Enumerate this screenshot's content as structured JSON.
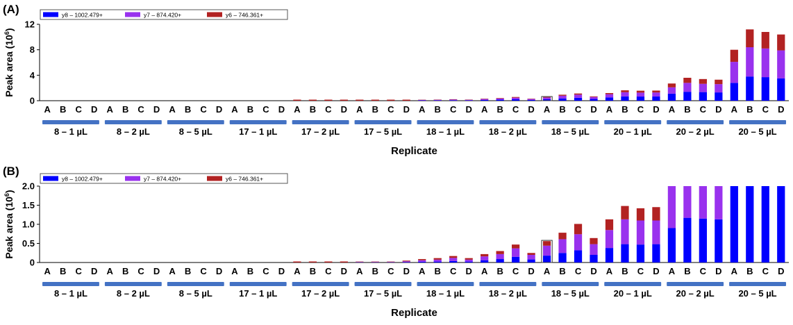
{
  "colors": {
    "y8": "#0000ff",
    "y7": "#9932ee",
    "y6": "#b22222",
    "group_bar": "#4472c4"
  },
  "legend": [
    {
      "name": "y8 – 1002.479+",
      "color": "#0000ff"
    },
    {
      "name": "y7 – 874.420+",
      "color": "#9932ee"
    },
    {
      "name": "y6 – 746.361+",
      "color": "#b22222"
    }
  ],
  "groups": [
    "8 – 1 µL",
    "8 – 2 µL",
    "8 – 5 µL",
    "17 – 1 µL",
    "17 – 2 µL",
    "17 – 5 µL",
    "18 – 1 µL",
    "18 – 2 µL",
    "18 – 5 µL",
    "20 – 1 µL",
    "20 – 2 µL",
    "20 – 5 µL"
  ],
  "replicates": [
    "A",
    "B",
    "C",
    "D"
  ],
  "chart_data": [
    {
      "type": "bar",
      "stacked": true,
      "panel_label": "(A)",
      "ylabel_main": "Peak area (10",
      "ylabel_exp": "6",
      "ylabel_close": ")",
      "xlabel": "Replicate",
      "ylim": [
        0,
        12
      ],
      "yticks": [
        "0",
        "4",
        "8",
        "12"
      ],
      "ytick_values": [
        0,
        4,
        8,
        12
      ],
      "highlight_index": 32,
      "series": [
        {
          "name": "y8 – 1002.479+",
          "values": [
            0,
            0,
            0,
            0,
            0,
            0,
            0,
            0,
            0,
            0,
            0,
            0,
            0,
            0,
            0,
            0,
            0,
            0,
            0,
            0,
            0.02,
            0.02,
            0.02,
            0.03,
            0.05,
            0.06,
            0.08,
            0.06,
            0.12,
            0.16,
            0.22,
            0.12,
            0.22,
            0.36,
            0.45,
            0.28,
            0.52,
            0.68,
            0.65,
            0.66,
            1.1,
            1.4,
            1.35,
            1.3,
            2.8,
            3.8,
            3.7,
            3.5
          ]
        },
        {
          "name": "y7 – 874.420+",
          "values": [
            0,
            0,
            0,
            0,
            0,
            0,
            0,
            0,
            0,
            0,
            0,
            0,
            0,
            0,
            0,
            0,
            0.01,
            0.01,
            0.01,
            0.01,
            0.03,
            0.03,
            0.03,
            0.04,
            0.06,
            0.07,
            0.09,
            0.07,
            0.14,
            0.17,
            0.25,
            0.14,
            0.27,
            0.42,
            0.5,
            0.3,
            0.5,
            0.65,
            0.62,
            0.63,
            1.0,
            1.4,
            1.3,
            1.3,
            3.3,
            4.6,
            4.5,
            4.4
          ]
        },
        {
          "name": "y6 – 746.361+",
          "values": [
            0,
            0,
            0,
            0,
            0,
            0,
            0,
            0,
            0,
            0,
            0,
            0,
            0,
            0,
            0,
            0,
            0,
            0,
            0,
            0,
            0.02,
            0.02,
            0.02,
            0.03,
            0.04,
            0.05,
            0.06,
            0.05,
            0.06,
            0.08,
            0.11,
            0.06,
            0.09,
            0.16,
            0.18,
            0.1,
            0.18,
            0.3,
            0.3,
            0.3,
            0.6,
            0.8,
            0.75,
            0.7,
            1.9,
            2.8,
            2.6,
            2.5
          ]
        }
      ]
    },
    {
      "type": "bar",
      "stacked": true,
      "panel_label": "(B)",
      "ylabel_main": "Peak area (10",
      "ylabel_exp": "6",
      "ylabel_close": ")",
      "xlabel": "Replicate",
      "ylim": [
        0,
        2.0
      ],
      "yticks": [
        "0",
        "0.5",
        "1.0",
        "1.5",
        "2.0"
      ],
      "ytick_values": [
        0,
        0.5,
        1.0,
        1.5,
        2.0
      ],
      "highlight_index": 32,
      "series": [
        {
          "name": "y8 – 1002.479+",
          "values": [
            0,
            0,
            0,
            0,
            0,
            0,
            0,
            0,
            0,
            0,
            0,
            0,
            0,
            0,
            0,
            0,
            0,
            0,
            0,
            0,
            0.005,
            0.005,
            0.005,
            0.01,
            0.02,
            0.025,
            0.04,
            0.025,
            0.06,
            0.09,
            0.15,
            0.08,
            0.18,
            0.25,
            0.32,
            0.2,
            0.38,
            0.48,
            0.47,
            0.48,
            0.9,
            1.17,
            1.15,
            1.13,
            2.0,
            2.0,
            2.0,
            2.0
          ]
        },
        {
          "name": "y7 – 874.420+",
          "values": [
            0,
            0,
            0,
            0,
            0,
            0,
            0,
            0,
            0,
            0,
            0,
            0,
            0,
            0,
            0,
            0,
            0.005,
            0.005,
            0.005,
            0.01,
            0.01,
            0.01,
            0.01,
            0.02,
            0.04,
            0.05,
            0.08,
            0.05,
            0.1,
            0.13,
            0.22,
            0.12,
            0.26,
            0.36,
            0.42,
            0.28,
            0.47,
            0.65,
            0.63,
            0.62,
            1.1,
            0.83,
            0.85,
            0.87,
            0,
            0,
            0,
            0
          ]
        },
        {
          "name": "y6 – 746.361+",
          "values": [
            0,
            0,
            0,
            0,
            0,
            0,
            0,
            0,
            0,
            0,
            0,
            0,
            0,
            0,
            0,
            0,
            0,
            0,
            0,
            0,
            0.01,
            0.01,
            0.01,
            0.02,
            0.03,
            0.04,
            0.05,
            0.04,
            0.06,
            0.08,
            0.1,
            0.05,
            0.12,
            0.17,
            0.27,
            0.16,
            0.28,
            0.35,
            0.32,
            0.35,
            0,
            0,
            0,
            0,
            0,
            0,
            0,
            0
          ]
        }
      ]
    }
  ]
}
